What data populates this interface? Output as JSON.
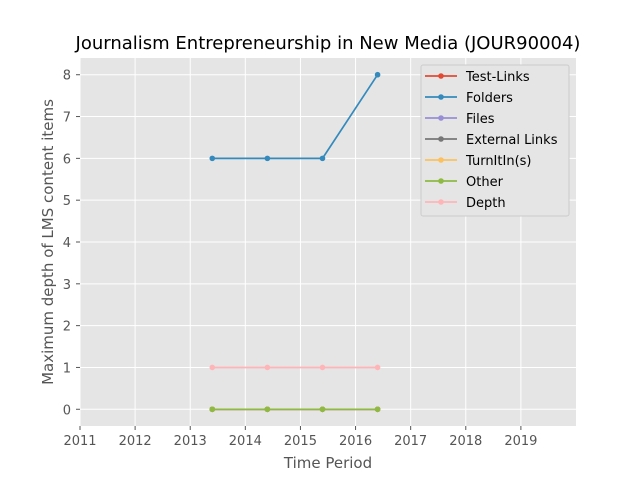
{
  "chart_data": {
    "type": "line",
    "title": "Journalism Entrepreneurship in New Media (JOUR90004)",
    "xlabel": "Time Period",
    "ylabel": "Maximum depth of LMS content items",
    "xlim": [
      2011,
      2020
    ],
    "ylim": [
      -0.4,
      8.4
    ],
    "x_ticks": [
      "2011",
      "2012",
      "2013",
      "2014",
      "2015",
      "2016",
      "2017",
      "2018",
      "2019"
    ],
    "y_ticks": [
      "0",
      "1",
      "2",
      "3",
      "4",
      "5",
      "6",
      "7",
      "8"
    ],
    "grid": true,
    "legend_position": "top-right",
    "x": [
      2013.4,
      2014.4,
      2015.4,
      2016.4
    ],
    "series": [
      {
        "name": "Test-Links",
        "color": "#E24A33",
        "values": [
          0,
          0,
          0,
          0
        ]
      },
      {
        "name": "Folders",
        "color": "#348ABD",
        "values": [
          6,
          6,
          6,
          8
        ]
      },
      {
        "name": "Files",
        "color": "#988ED5",
        "values": [
          0,
          0,
          0,
          0
        ]
      },
      {
        "name": "External Links",
        "color": "#777777",
        "values": [
          0,
          0,
          0,
          0
        ]
      },
      {
        "name": "TurnItIn(s)",
        "color": "#FBC15E",
        "values": [
          0,
          0,
          0,
          0
        ]
      },
      {
        "name": "Other",
        "color": "#8EBA42",
        "values": [
          0,
          0,
          0,
          0
        ]
      },
      {
        "name": "Depth",
        "color": "#FFB5B8",
        "values": [
          1,
          1,
          1,
          1
        ]
      }
    ]
  }
}
